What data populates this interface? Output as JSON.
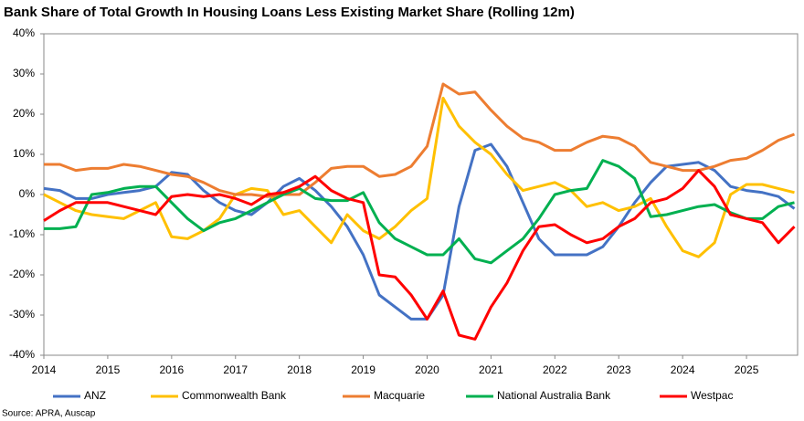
{
  "chart_data": {
    "type": "line",
    "title": "Bank Share of Total Growth In Housing Loans Less Existing Market Share (Rolling 12m)",
    "source": "Source: APRA, Auscap",
    "x": [
      2014,
      2014.25,
      2014.5,
      2014.75,
      2015,
      2015.25,
      2015.5,
      2015.75,
      2016,
      2016.25,
      2016.5,
      2016.75,
      2017,
      2017.25,
      2017.5,
      2017.75,
      2018,
      2018.25,
      2018.5,
      2018.75,
      2019,
      2019.25,
      2019.5,
      2019.75,
      2020,
      2020.25,
      2020.5,
      2020.75,
      2021,
      2021.25,
      2021.5,
      2021.75,
      2022,
      2022.25,
      2022.5,
      2022.75,
      2023,
      2023.25,
      2023.5,
      2023.75,
      2024,
      2024.25,
      2024.5,
      2024.75,
      2025,
      2025.25,
      2025.5,
      2025.75
    ],
    "series": [
      {
        "name": "ANZ",
        "color": "#4472c4",
        "values": [
          1.5,
          1,
          -1,
          -1,
          0,
          0.5,
          1,
          2,
          5.5,
          5,
          1,
          -2,
          -4,
          -5,
          -2,
          2,
          4,
          1,
          -3,
          -8,
          -15,
          -25,
          -28,
          -31,
          -31,
          -25,
          -3,
          11,
          12.5,
          7,
          -2,
          -11,
          -15,
          -15,
          -15,
          -13,
          -8,
          -2,
          3,
          7,
          7.5,
          8,
          6,
          2,
          1,
          0.5,
          -0.5,
          -3.5
        ]
      },
      {
        "name": "Commonwealth Bank",
        "color": "#ffc000",
        "values": [
          0,
          -2,
          -4,
          -5,
          -5.5,
          -6,
          -4,
          -2,
          -10.5,
          -11,
          -9,
          -6,
          0,
          1.5,
          1,
          -5,
          -4,
          -8,
          -12,
          -5,
          -9,
          -11,
          -8,
          -4,
          -1,
          24,
          17,
          13,
          10,
          5,
          1,
          2,
          3,
          1,
          -3,
          -2,
          -4,
          -3,
          -1,
          -8,
          -14,
          -15.5,
          -12,
          0,
          2.5,
          2.5,
          1.5,
          0.5
        ]
      },
      {
        "name": "Macquarie",
        "color": "#ed7d31",
        "values": [
          7.5,
          7.5,
          6,
          6.5,
          6.5,
          7.5,
          7,
          6,
          5,
          4.5,
          3,
          1,
          0,
          0,
          -0.5,
          0,
          0,
          3,
          6.5,
          7,
          7,
          4.5,
          5,
          7,
          12,
          27.5,
          25,
          25.5,
          21,
          17,
          14,
          13,
          11,
          11,
          13,
          14.5,
          14,
          12,
          8,
          7,
          6,
          6,
          7,
          8.5,
          9,
          11,
          13.5,
          15
        ]
      },
      {
        "name": "National Australia Bank",
        "color": "#00b050",
        "values": [
          -8.5,
          -8.5,
          -8,
          0,
          0.5,
          1.5,
          2,
          2,
          -2,
          -6,
          -9,
          -7,
          -6,
          -4,
          -2,
          0,
          1.5,
          -1,
          -1.5,
          -1.5,
          0.5,
          -7,
          -11,
          -13,
          -15,
          -15,
          -11,
          -16,
          -17,
          -14,
          -11,
          -6,
          0,
          1,
          1.5,
          8.5,
          7,
          4,
          -5.5,
          -5,
          -4,
          -3,
          -2.5,
          -4.5,
          -6,
          -6,
          -3,
          -2
        ]
      },
      {
        "name": "Westpac",
        "color": "#ff0000",
        "values": [
          -6.5,
          -4,
          -2,
          -2,
          -2,
          -3,
          -4,
          -5,
          -0.5,
          0,
          -0.5,
          0,
          -1,
          -2.5,
          0,
          0.5,
          2,
          4.5,
          1,
          -1,
          -2,
          -20,
          -20.5,
          -25,
          -31,
          -24,
          -35,
          -36,
          -28,
          -22,
          -14,
          -8,
          -7.5,
          -10,
          -12,
          -11,
          -8,
          -6,
          -2,
          -1,
          1.5,
          6,
          2,
          -5,
          -6,
          -7,
          -12,
          -8
        ]
      }
    ],
    "xlim": [
      2014,
      2025.8
    ],
    "xticks": [
      2014,
      2015,
      2016,
      2017,
      2018,
      2019,
      2020,
      2021,
      2022,
      2023,
      2024,
      2025
    ],
    "ylim": [
      -40,
      40
    ],
    "yticks": [
      {
        "value": -40,
        "label": "-40%"
      },
      {
        "value": -30,
        "label": "-30%"
      },
      {
        "value": -20,
        "label": "-20%"
      },
      {
        "value": -10,
        "label": "-10%"
      },
      {
        "value": 0,
        "label": "0%"
      },
      {
        "value": 10,
        "label": "10%"
      },
      {
        "value": 20,
        "label": "20%"
      },
      {
        "value": 30,
        "label": "30%"
      },
      {
        "value": 40,
        "label": "40%"
      }
    ],
    "grid": false,
    "legend": "bottom"
  }
}
